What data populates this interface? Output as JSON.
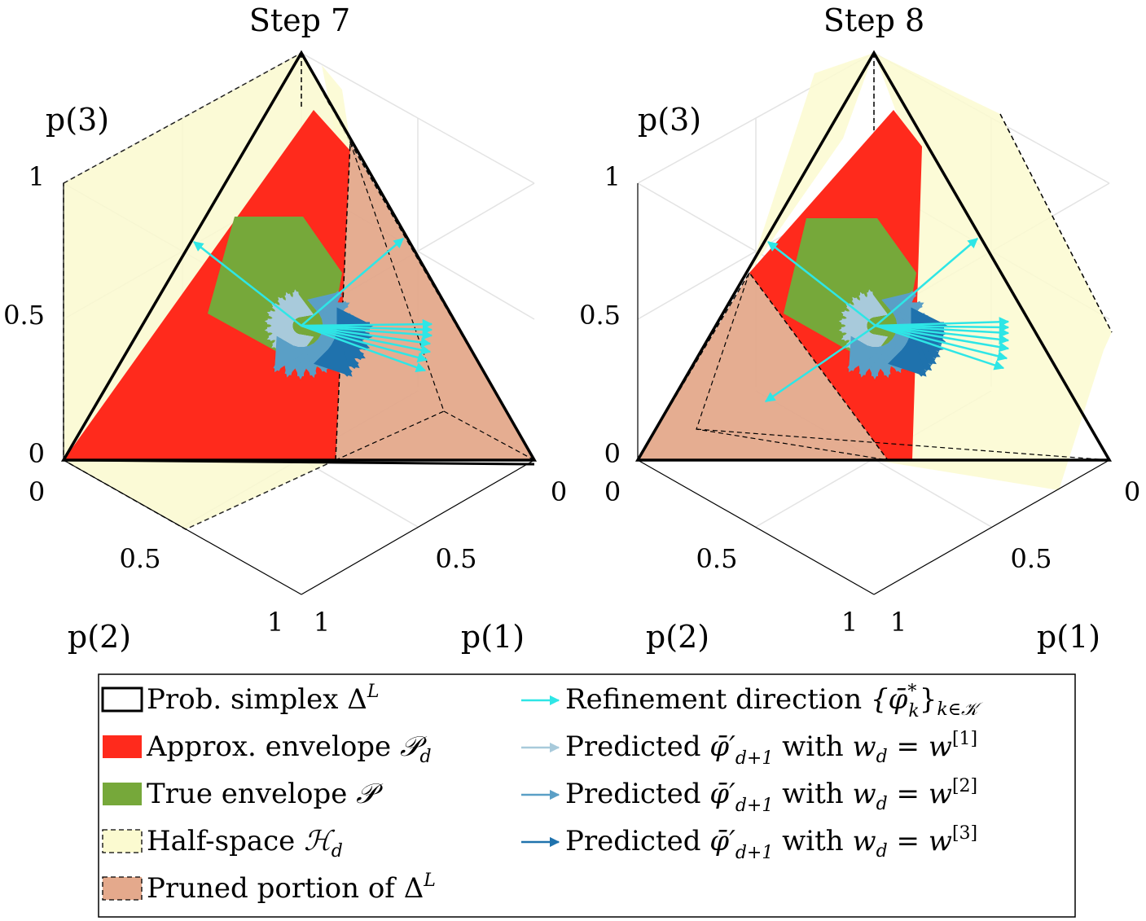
{
  "chart_data": [
    {
      "type": "simplex-3d",
      "title": "Step 7",
      "axes": {
        "p1": {
          "label": "p(1)",
          "ticks": [
            "0",
            "0.5",
            "1"
          ],
          "range": [
            0,
            1
          ]
        },
        "p2": {
          "label": "p(2)",
          "ticks": [
            "0",
            "0.5",
            "1"
          ],
          "range": [
            0,
            1
          ]
        },
        "p3": {
          "label": "p(3)",
          "ticks": [
            "0",
            "0.5",
            "1"
          ],
          "range": [
            0,
            1
          ]
        }
      },
      "regions": [
        "Prob. simplex",
        "Approx. envelope",
        "True envelope",
        "Half-space",
        "Pruned portion"
      ],
      "refinement_arrows": 9,
      "predicted_w1_arrows": 12,
      "predicted_w2_arrows": 12,
      "predicted_w3_arrows": 6
    },
    {
      "type": "simplex-3d",
      "title": "Step 8",
      "axes": {
        "p1": {
          "label": "p(1)",
          "ticks": [
            "0",
            "0.5",
            "1"
          ],
          "range": [
            0,
            1
          ]
        },
        "p2": {
          "label": "p(2)",
          "ticks": [
            "0",
            "0.5",
            "1"
          ],
          "range": [
            0,
            1
          ]
        },
        "p3": {
          "label": "p(3)",
          "ticks": [
            "0",
            "0.5",
            "1"
          ],
          "range": [
            0,
            1
          ]
        }
      },
      "regions": [
        "Prob. simplex",
        "Approx. envelope",
        "True envelope",
        "Half-space",
        "Pruned portion"
      ],
      "refinement_arrows": 10,
      "predicted_w1_arrows": 12,
      "predicted_w2_arrows": 12,
      "predicted_w3_arrows": 8
    }
  ],
  "legend": {
    "items": [
      {
        "text": "Prob. simplex",
        "math": "Δ",
        "sup": "L"
      },
      {
        "text": "Approx. envelope",
        "math": "𝒫",
        "sub": "d"
      },
      {
        "text": "True envelope",
        "math": "𝒫"
      },
      {
        "text": "Half-space",
        "math": "ℋ",
        "sub": "d"
      },
      {
        "text": "Pruned portion of",
        "math": "Δ",
        "sup": "L"
      },
      {
        "text": "Refinement direction",
        "math": "{φ̄",
        "sup": "*",
        "sub": "k",
        "tail": "}",
        "tail_sub": "k∈𝒦"
      },
      {
        "text": "Predicted",
        "math": "φ̄′",
        "sub": "d+1",
        "mid": "with",
        "w": "w",
        "wsub": "d",
        "eq": "= w",
        "sup": "[1]"
      },
      {
        "text": "Predicted",
        "math": "φ̄′",
        "sub": "d+1",
        "mid": "with",
        "w": "w",
        "wsub": "d",
        "eq": "= w",
        "sup": "[2]"
      },
      {
        "text": "Predicted",
        "math": "φ̄′",
        "sub": "d+1",
        "mid": "with",
        "w": "w",
        "wsub": "d",
        "eq": "= w",
        "sup": "[3]"
      }
    ]
  },
  "colors": {
    "simplex": "#000000",
    "approx": "#ff2a1c",
    "true": "#76a83a",
    "halfspace": "#fbfad0",
    "pruned": "#e4a98c",
    "refine": "#2ee6e6",
    "w1": "#a8cadb",
    "w2": "#5a9fc6",
    "w3": "#1f72ad"
  }
}
